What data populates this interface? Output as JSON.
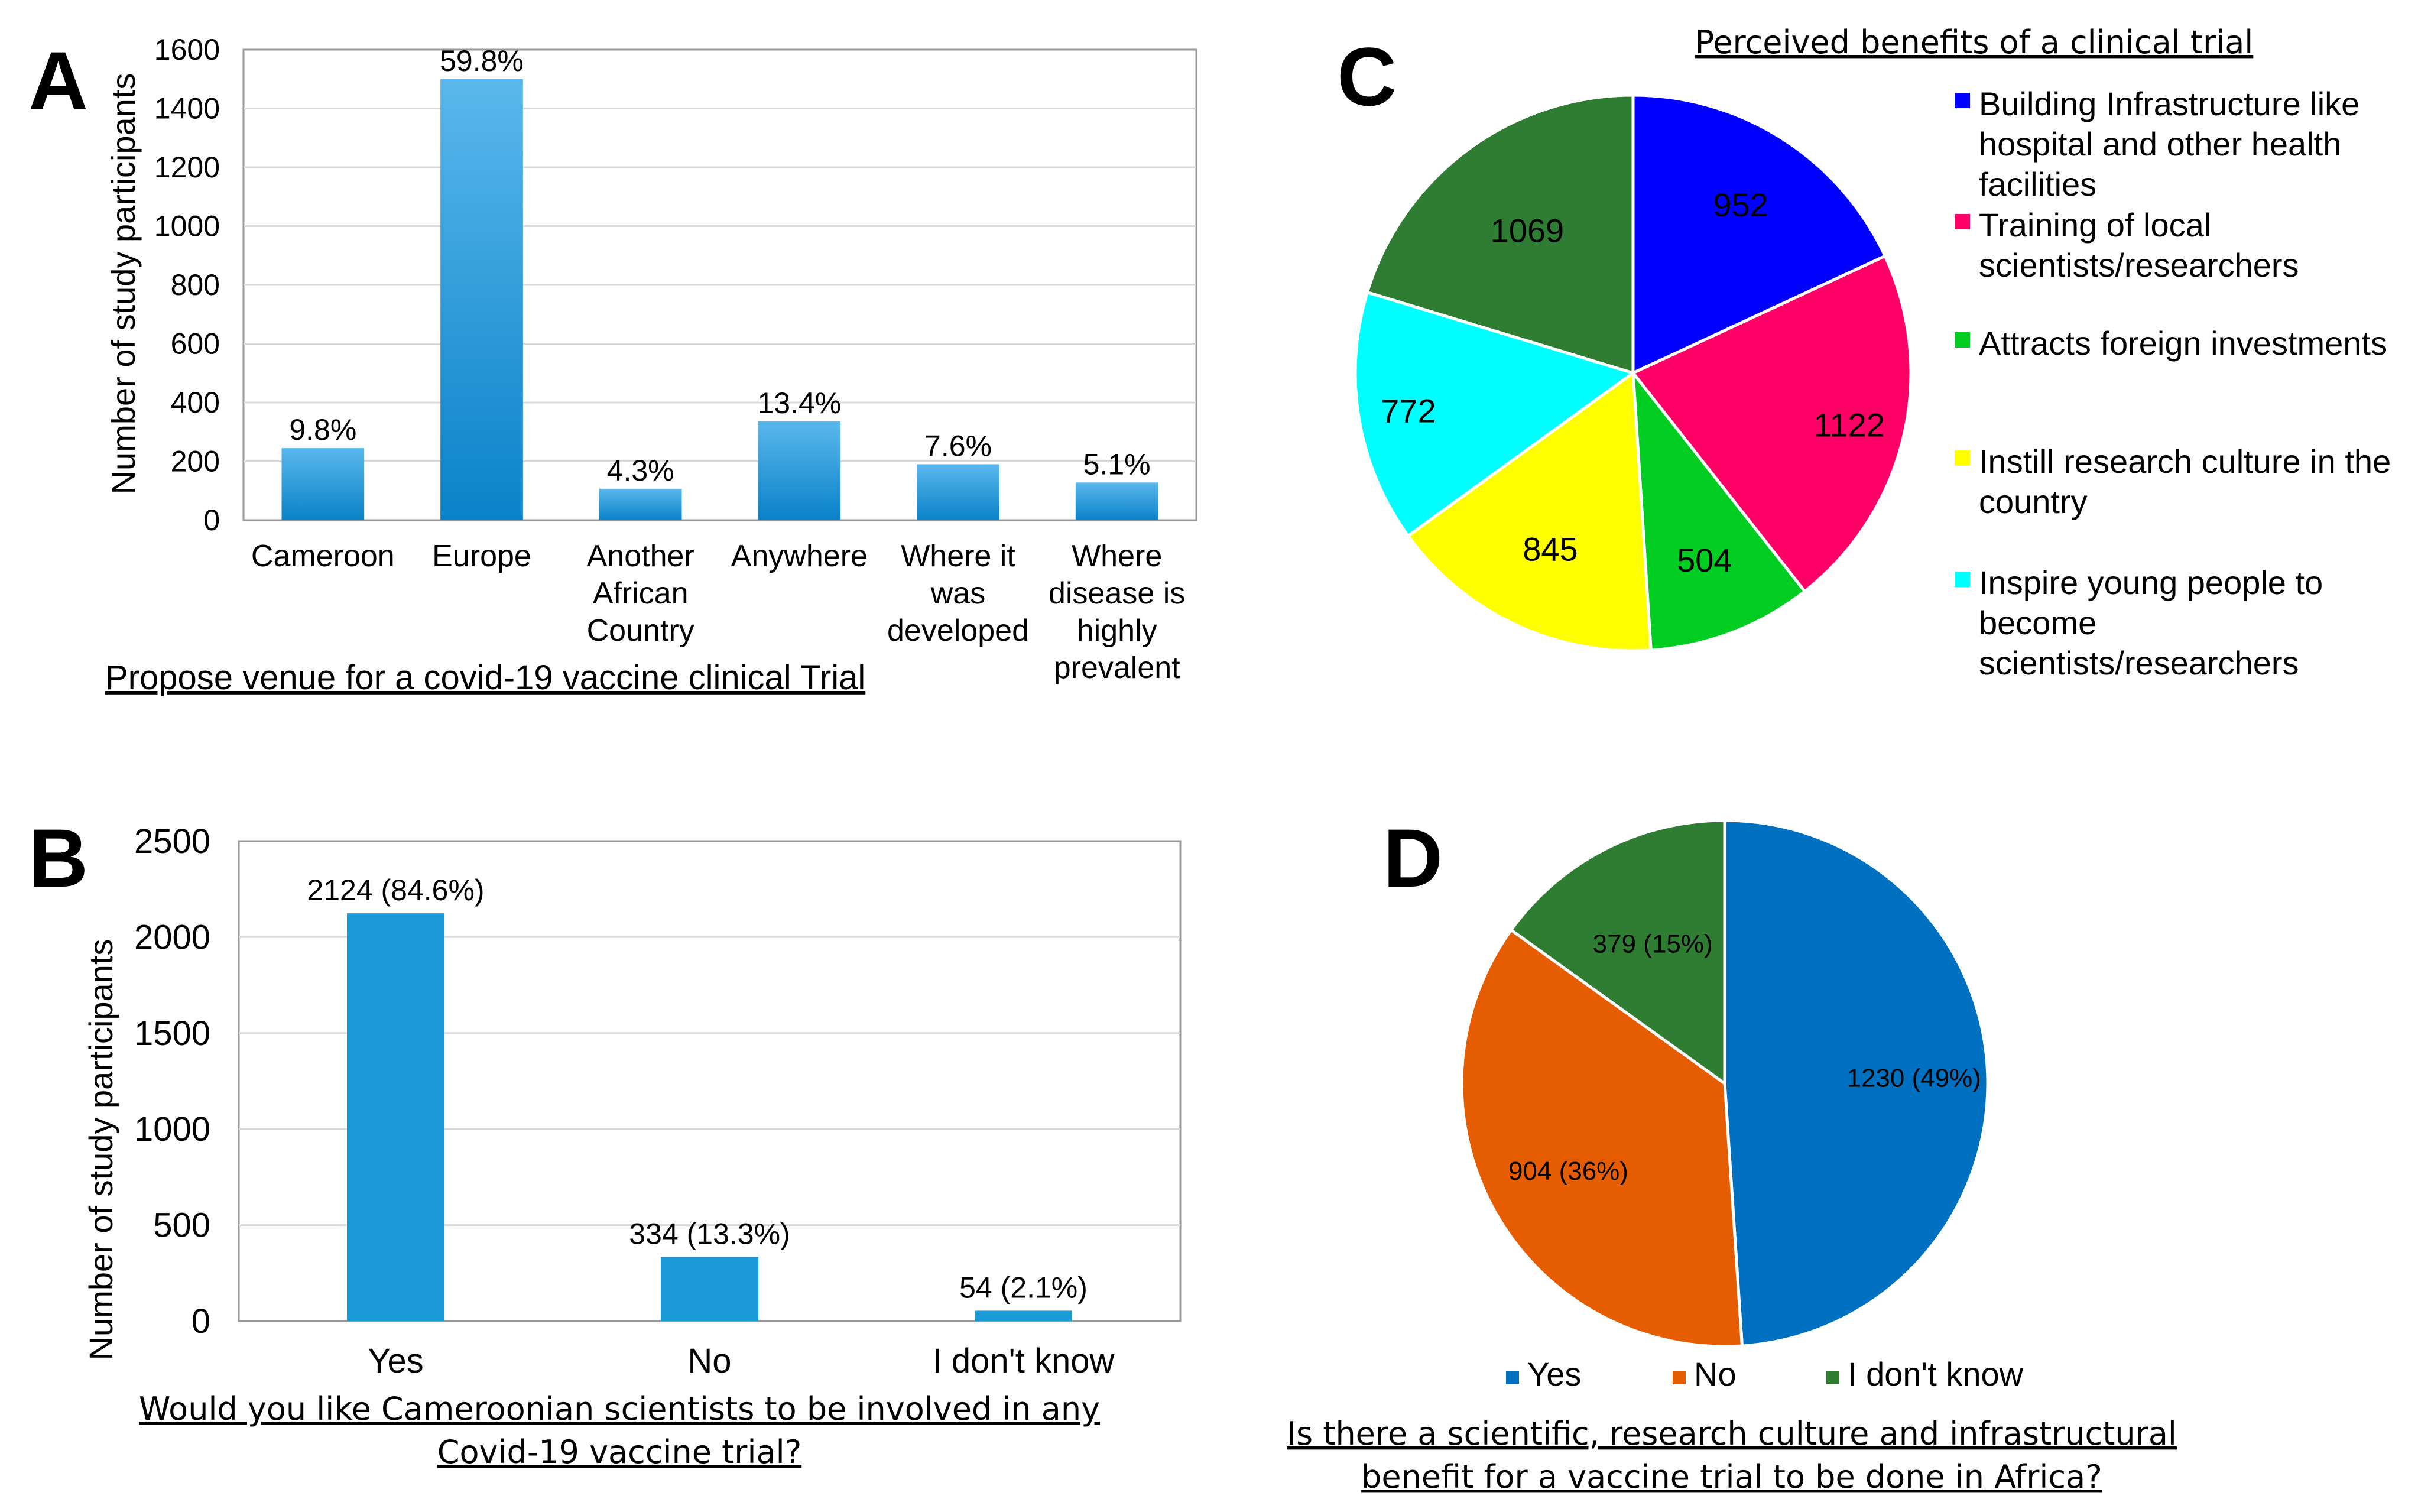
{
  "panels": {
    "A": {
      "letter": "A",
      "chart_data": {
        "type": "bar",
        "title": "Propose venue for a covid-19 vaccine clinical Trial",
        "ylabel": "Number of study participants",
        "xlabel": "",
        "ylim": [
          0,
          1600
        ],
        "yticks": [
          "0",
          "200",
          "400",
          "600",
          "800",
          "1000",
          "1200",
          "1400",
          "1600"
        ],
        "categories": [
          [
            "Cameroon"
          ],
          [
            "Europe"
          ],
          [
            "Another",
            "African",
            "Country"
          ],
          [
            "Anywhere"
          ],
          [
            "Where it",
            "was",
            "developed"
          ],
          [
            "Where",
            "disease is",
            "highly",
            "prevalent"
          ]
        ],
        "values": [
          245,
          1500,
          107,
          336,
          190,
          128
        ],
        "labels": [
          "9.8%",
          "59.8%",
          "4.3%",
          "13.4%",
          "7.6%",
          "5.1%"
        ],
        "grid": true
      }
    },
    "B": {
      "letter": "B",
      "chart_data": {
        "type": "bar",
        "title_lines": [
          "Would you like Cameroonian scientists to be involved in any",
          "Covid-19 vaccine trial?"
        ],
        "ylabel": "Number of study participants",
        "ylim": [
          0,
          2500
        ],
        "yticks": [
          "0",
          "500",
          "1000",
          "1500",
          "2000",
          "2500"
        ],
        "categories": [
          "Yes",
          "No",
          "I don't know"
        ],
        "values": [
          2124,
          334,
          54
        ],
        "labels": [
          "2124 (84.6%)",
          "334 (13.3%)",
          "54 (2.1%)"
        ],
        "grid": true
      }
    },
    "C": {
      "letter": "C",
      "chart_data": {
        "type": "pie",
        "title": "Perceived benefits of a clinical trial",
        "slices": [
          {
            "name": "Building Infrastructure like hospital and other health facilities",
            "legend_lines": [
              "Building Infrastructure like",
              "hospital and other health",
              "facilities"
            ],
            "value": 952,
            "color": "#0000ff"
          },
          {
            "name": "Training of local scientists/researchers",
            "legend_lines": [
              "Training of local",
              "scientists/researchers"
            ],
            "value": 1122,
            "color": "#ff0066"
          },
          {
            "name": "Attracts foreign investments",
            "legend_lines": [
              "Attracts foreign investments"
            ],
            "value": 504,
            "color": "#00cc22"
          },
          {
            "name": "Instill research culture in the country",
            "legend_lines": [
              "Instill research culture in the",
              "country"
            ],
            "value": 845,
            "color": "#ffff00"
          },
          {
            "name": "Inspire young people to become scientists/researchers",
            "legend_lines": [
              "Inspire young people to",
              "become",
              "scientists/researchers"
            ],
            "value": 772,
            "color": "#00ffff"
          },
          {
            "name": "",
            "legend_lines": [],
            "value": 1069,
            "color": "#2e7d32"
          }
        ],
        "legend_position": "right"
      }
    },
    "D": {
      "letter": "D",
      "chart_data": {
        "type": "pie",
        "title_lines": [
          "Is there a scientific, research culture and infrastructural",
          "benefit for a vaccine trial to be done in Africa?"
        ],
        "slices": [
          {
            "name": "Yes",
            "value": 1230,
            "label": "1230 (49%)",
            "color": "#0070c0"
          },
          {
            "name": "No",
            "value": 904,
            "label": "904 (36%)",
            "color": "#e65c00"
          },
          {
            "name": "I don't know",
            "value": 379,
            "label": "379 (15%)",
            "color": "#2e7d32"
          }
        ],
        "legend_position": "bottom"
      }
    }
  }
}
